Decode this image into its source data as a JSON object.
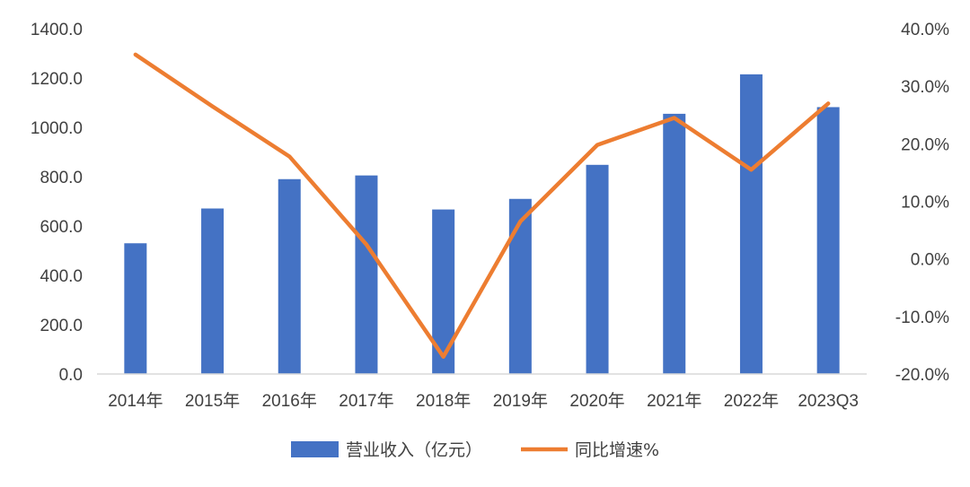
{
  "colors": {
    "bar": "#4472C4",
    "line": "#ED7D31",
    "axis": "#D9D9D9",
    "text": "#404040"
  },
  "chart_data": {
    "type": "bar",
    "categories": [
      "2014年",
      "2015年",
      "2016年",
      "2017年",
      "2018年",
      "2019年",
      "2020年",
      "2021年",
      "2022年",
      "2023Q3"
    ],
    "series": [
      {
        "name": "营业收入（亿元）",
        "type": "bar",
        "axis": "left",
        "values": [
          530,
          671,
          790,
          805,
          667,
          710,
          848,
          1055,
          1215,
          1082
        ]
      },
      {
        "name": "同比增速%",
        "type": "line",
        "axis": "right",
        "values": [
          35.5,
          26.5,
          17.8,
          2.5,
          -17.0,
          6.5,
          19.8,
          24.5,
          15.5,
          27.0
        ]
      }
    ],
    "y_left": {
      "ylim": [
        0,
        1400
      ],
      "ticks": [
        "1400.0",
        "1200.0",
        "1000.0",
        "800.0",
        "600.0",
        "400.0",
        "200.0",
        "0.0"
      ]
    },
    "y_right": {
      "ylim": [
        -20,
        40
      ],
      "ticks": [
        "40.0%",
        "30.0%",
        "20.0%",
        "10.0%",
        "0.0%",
        "-10.0%",
        "-20.0%"
      ]
    },
    "grid": false,
    "legend": "bottom-center"
  }
}
